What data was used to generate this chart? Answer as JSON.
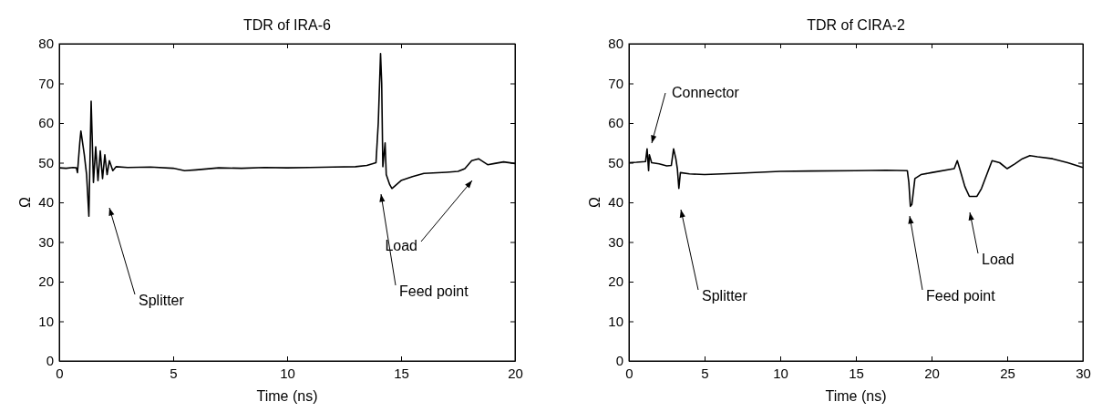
{
  "chart_data": [
    {
      "type": "line",
      "title": "TDR of IRA-6",
      "xlabel": "Time (ns)",
      "ylabel": "Ω",
      "xlim": [
        0,
        20
      ],
      "ylim": [
        0,
        80
      ],
      "xticks": [
        0,
        5,
        10,
        15,
        20
      ],
      "yticks": [
        0,
        10,
        20,
        30,
        40,
        50,
        60,
        70,
        80
      ],
      "marker": "none",
      "line_style": "solid",
      "series": [
        {
          "color": "#000000",
          "x": [
            0,
            0.3,
            0.6,
            0.75,
            0.8,
            0.9,
            0.95,
            1.05,
            1.1,
            1.2,
            1.3,
            1.4,
            1.5,
            1.6,
            1.7,
            1.8,
            1.9,
            2.0,
            2.1,
            2.2,
            2.35,
            2.5,
            3,
            4,
            5,
            5.5,
            6,
            7,
            8,
            9,
            10,
            11,
            12,
            13,
            13.5,
            13.9,
            14.0,
            14.1,
            14.15,
            14.2,
            14.3,
            14.35,
            14.5,
            14.6,
            15,
            15.5,
            16,
            17,
            17.5,
            17.8,
            18.1,
            18.4,
            18.8,
            19.1,
            19.5,
            20
          ],
          "values": [
            48.7,
            48.6,
            48.8,
            48.7,
            47.5,
            55,
            58,
            54,
            52,
            47,
            36.5,
            65.5,
            45,
            54,
            45.5,
            53,
            46,
            52,
            47,
            50.5,
            48,
            49,
            48.8,
            48.9,
            48.6,
            48,
            48.2,
            48.7,
            48.6,
            48.8,
            48.7,
            48.8,
            48.9,
            49,
            49.3,
            50,
            60,
            77.5,
            70,
            49,
            55,
            47,
            44.5,
            43.5,
            45.5,
            46.5,
            47.3,
            47.6,
            47.8,
            48.5,
            50.5,
            51,
            49.5,
            49.8,
            50.2,
            49.8
          ]
        }
      ],
      "annotations": [
        "Splitter",
        "Feed point",
        "Load"
      ]
    },
    {
      "type": "line",
      "title": "TDR of CIRA-2",
      "xlabel": "Time (ns)",
      "ylabel": "Ω",
      "xlim": [
        0,
        30
      ],
      "ylim": [
        0,
        80
      ],
      "xticks": [
        0,
        5,
        10,
        15,
        20,
        25,
        30
      ],
      "yticks": [
        0,
        10,
        20,
        30,
        40,
        50,
        60,
        70,
        80
      ],
      "marker": "none",
      "line_style": "solid",
      "series": [
        {
          "color": "#000000",
          "x": [
            0,
            0.5,
            1.1,
            1.2,
            1.3,
            1.35,
            1.5,
            2,
            2.5,
            2.8,
            2.95,
            3.1,
            3.2,
            3.3,
            3.4,
            4,
            5,
            7,
            10,
            12,
            15,
            17,
            18.4,
            18.5,
            18.6,
            18.7,
            18.9,
            19.3,
            20,
            21.5,
            21.7,
            21.9,
            22.2,
            22.5,
            23,
            23.3,
            24,
            24.5,
            25,
            25.5,
            26,
            26.5,
            27,
            28,
            29,
            30
          ],
          "values": [
            50,
            50.1,
            50.3,
            53.5,
            48,
            52,
            50,
            49.7,
            49.2,
            49.3,
            53.5,
            51,
            48.5,
            43.5,
            47.5,
            47.2,
            47,
            47.3,
            47.8,
            47.9,
            48,
            48.1,
            48,
            45,
            39,
            39.5,
            46,
            47,
            47.5,
            48.5,
            50.5,
            48,
            44,
            41.5,
            41.5,
            43.5,
            50.5,
            50,
            48.5,
            49.7,
            51,
            51.8,
            51.5,
            51,
            50,
            48.8
          ]
        }
      ],
      "annotations": [
        "Connector",
        "Splitter",
        "Feed point",
        "Load"
      ]
    }
  ]
}
